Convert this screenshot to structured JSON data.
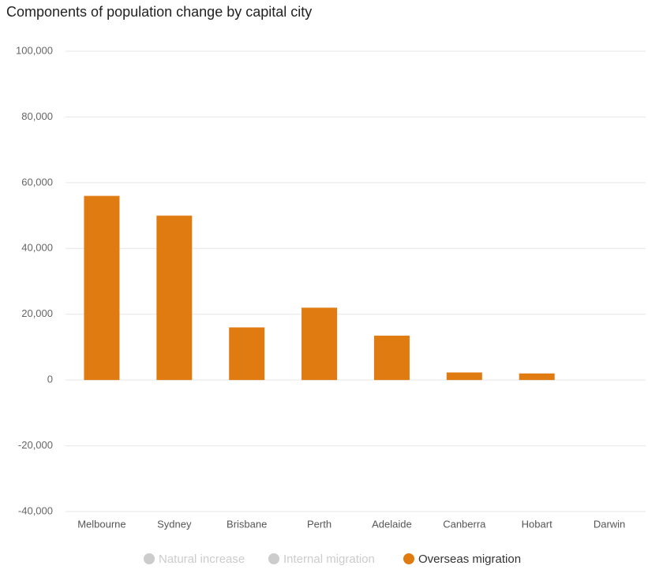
{
  "chart_data": {
    "type": "bar",
    "title": "Components of population change by capital city",
    "categories": [
      "Melbourne",
      "Sydney",
      "Brisbane",
      "Perth",
      "Adelaide",
      "Canberra",
      "Hobart",
      "Darwin"
    ],
    "series": [
      {
        "name": "Natural increase",
        "color": "#cccccc",
        "visible": false,
        "values": [
          null,
          null,
          null,
          null,
          null,
          null,
          null,
          null
        ]
      },
      {
        "name": "Internal migration",
        "color": "#cccccc",
        "visible": false,
        "values": [
          null,
          null,
          null,
          null,
          null,
          null,
          null,
          null
        ]
      },
      {
        "name": "Overseas migration",
        "color": "#e07b12",
        "visible": true,
        "values": [
          56000,
          50000,
          16000,
          22000,
          13500,
          2300,
          2000,
          0
        ]
      }
    ],
    "ylim": [
      -40000,
      100000
    ],
    "yticks": [
      {
        "value": -40000,
        "label": "-40,000"
      },
      {
        "value": -20000,
        "label": "-20,000"
      },
      0,
      {
        "value": 20000,
        "label": "20,000"
      },
      {
        "value": 40000,
        "label": "40,000"
      },
      {
        "value": 60000,
        "label": "60,000"
      },
      {
        "value": 80000,
        "label": "80,000"
      },
      {
        "value": 100000,
        "label": "100,000"
      }
    ],
    "grid": true,
    "legend": "bottom"
  }
}
